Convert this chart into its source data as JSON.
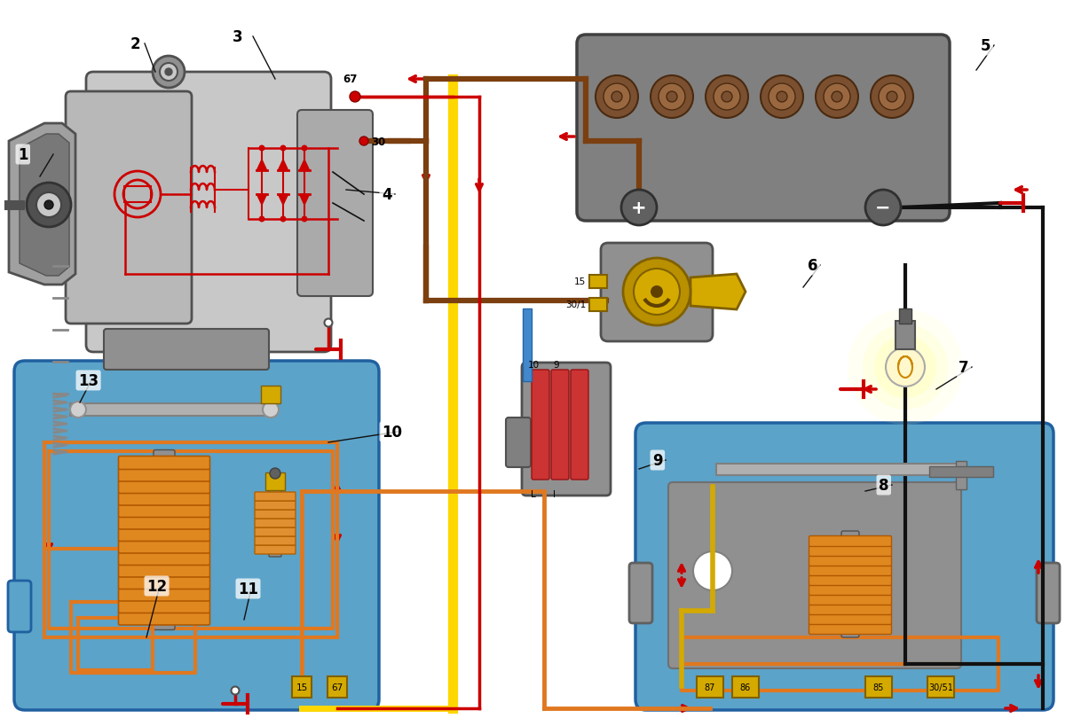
{
  "bg_color": "#ffffff",
  "RED": "#cc0000",
  "BROWN": "#7B3F10",
  "YELLOW": "#FFD700",
  "ORANGE": "#E07820",
  "BLUE_BG": "#5BA3C9",
  "BLACK": "#111111",
  "GRAY": "#909090",
  "LGRAY": "#c8c8c8",
  "DGRAY": "#505050",
  "MGRAY": "#7a7a7a",
  "GOLD": "#d4aa00",
  "DARK_GOLD": "#806000"
}
